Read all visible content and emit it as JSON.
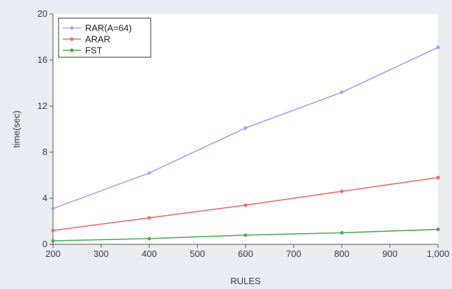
{
  "chart_data": {
    "type": "line",
    "title": "",
    "xlabel": "RULES",
    "ylabel": "time(sec)",
    "x": [
      200,
      400,
      600,
      800,
      1000
    ],
    "xlim": [
      200,
      1000
    ],
    "ylim": [
      0,
      20
    ],
    "xticks": [
      "200",
      "300",
      "400",
      "500",
      "600",
      "700",
      "800",
      "900",
      "1,000"
    ],
    "yticks": [
      "0",
      "4",
      "8",
      "12",
      "16",
      "20"
    ],
    "grid": false,
    "legend_position": "top-left",
    "series": [
      {
        "name": "RAR(A=64)",
        "color": "#a6a2f2",
        "marker": "circle",
        "values": [
          3.1,
          6.2,
          10.1,
          13.2,
          17.1
        ]
      },
      {
        "name": "ARAR",
        "color": "#ef6f6f",
        "marker": "circle",
        "values": [
          1.2,
          2.3,
          3.4,
          4.6,
          5.8
        ]
      },
      {
        "name": "FST",
        "color": "#4faa5a",
        "marker": "circle",
        "values": [
          0.3,
          0.5,
          0.8,
          1.0,
          1.3
        ]
      }
    ]
  }
}
